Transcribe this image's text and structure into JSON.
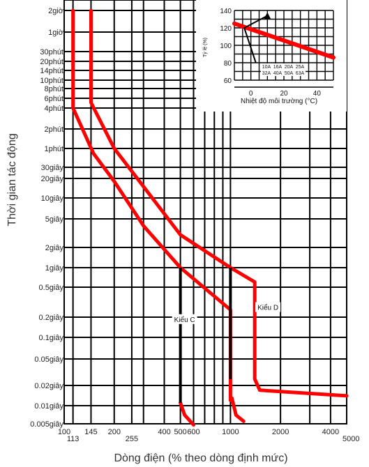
{
  "chart_data": [
    {
      "type": "line",
      "title": "",
      "xlabel": "Dòng điện (% theo dòng định mức)",
      "ylabel": "Thời gian tác động",
      "x_scale": "log",
      "y_scale": "log",
      "xlim": [
        100,
        5000
      ],
      "x_ticks": [
        {
          "value": 100,
          "label": "100"
        },
        {
          "value": 113,
          "label": "113"
        },
        {
          "value": 145,
          "label": "145"
        },
        {
          "value": 200,
          "label": "200"
        },
        {
          "value": 255,
          "label": "255"
        },
        {
          "value": 400,
          "label": "400"
        },
        {
          "value": 500,
          "label": "500"
        },
        {
          "value": 600,
          "label": "600"
        },
        {
          "value": 1000,
          "label": "1000"
        },
        {
          "value": 2000,
          "label": "2000"
        },
        {
          "value": 4000,
          "label": "4000"
        },
        {
          "value": 5000,
          "label": "5000"
        }
      ],
      "y_ticks": [
        {
          "value": 7200,
          "label": "2giờ"
        },
        {
          "value": 3600,
          "label": "1giờ"
        },
        {
          "value": 1800,
          "label": "30phút"
        },
        {
          "value": 1200,
          "label": "20phút"
        },
        {
          "value": 840,
          "label": "14phút"
        },
        {
          "value": 600,
          "label": "10phút"
        },
        {
          "value": 480,
          "label": "8phút"
        },
        {
          "value": 360,
          "label": "6phút"
        },
        {
          "value": 240,
          "label": "4phút"
        },
        {
          "value": 120,
          "label": "2phút"
        },
        {
          "value": 60,
          "label": "1phút"
        },
        {
          "value": 30,
          "label": "30giây"
        },
        {
          "value": 20,
          "label": "20giây"
        },
        {
          "value": 10,
          "label": "10giây"
        },
        {
          "value": 5,
          "label": "5giây"
        },
        {
          "value": 2,
          "label": "2giây"
        },
        {
          "value": 1,
          "label": "1giây"
        },
        {
          "value": 0.5,
          "label": "0.5giây"
        },
        {
          "value": 0.2,
          "label": "0.2giây"
        },
        {
          "value": 0.1,
          "label": "0.1giây"
        },
        {
          "value": 0.05,
          "label": "0.05giây"
        },
        {
          "value": 0.02,
          "label": "0.02giây"
        },
        {
          "value": 0.01,
          "label": "0.01giây"
        },
        {
          "value": 0.005,
          "label": "0.005giây"
        }
      ],
      "grid": true,
      "annotations": [
        {
          "text": "Kiểu C",
          "x": 530,
          "y": 0.17
        },
        {
          "text": "Kiểu D",
          "x": 1680,
          "y": 0.25
        }
      ],
      "bands": [
        {
          "points": [
            [
              113,
              7200
            ],
            [
              113,
              240
            ],
            [
              150,
              50
            ],
            [
              200,
              18
            ],
            [
              300,
              4
            ],
            [
              500,
              1
            ],
            [
              1000,
              0.25
            ],
            [
              1000,
              0.012
            ]
          ],
          "color": "#ff0000"
        },
        {
          "points": [
            [
              145,
              7200
            ],
            [
              145,
              300
            ],
            [
              200,
              60
            ],
            [
              300,
              15
            ],
            [
              500,
              3
            ],
            [
              1000,
              1
            ],
            [
              1400,
              0.6
            ],
            [
              1400,
              0.025
            ],
            [
              1500,
              0.017
            ],
            [
              5000,
              0.014
            ]
          ],
          "color": "#ff0000"
        },
        {
          "points": [
            [
              500,
              0.011
            ],
            [
              530,
              0.007
            ],
            [
              600,
              0.0048
            ]
          ],
          "color": "#ff0000"
        },
        {
          "points": [
            [
              1020,
              0.013
            ],
            [
              1080,
              0.007
            ],
            [
              1200,
              0.0055
            ]
          ],
          "color": "#ff0000"
        }
      ],
      "vertical_segments": [
        {
          "x": 500,
          "y_from": 1,
          "y_to": 0.011,
          "color": "#000000"
        },
        {
          "x": 1000,
          "y_from": 1,
          "y_to": 0.025,
          "color": "#000000"
        }
      ]
    },
    {
      "type": "line",
      "title": "",
      "xlabel": "Nhiệt độ môi trường (°C)",
      "ylabel": "Tỷ lệ (%)",
      "xlim": [
        -10,
        50
      ],
      "ylim": [
        60,
        140
      ],
      "x_ticks": [
        0,
        20,
        40
      ],
      "y_ticks": [
        60,
        80,
        100,
        120,
        140
      ],
      "grid": true,
      "series": [
        {
          "x": [
            -10,
            50
          ],
          "y": [
            125,
            86
          ],
          "color": "#ff0000"
        }
      ],
      "marks": [
        {
          "x": 10,
          "y": 134,
          "shape": "triangle"
        }
      ],
      "table": [
        [
          "10A",
          "16A",
          "20A",
          "25A"
        ],
        [
          "32A",
          "40A",
          "50A",
          "63A"
        ]
      ]
    }
  ]
}
